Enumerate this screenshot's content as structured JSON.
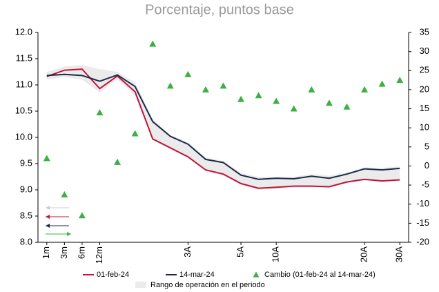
{
  "chart_data": {
    "type": "line",
    "title": "Porcentaje, puntos base",
    "categories": [
      "1m",
      "3m",
      "6m",
      "12m",
      null,
      null,
      null,
      null,
      "3A",
      null,
      null,
      "5A",
      null,
      "10A",
      null,
      null,
      null,
      null,
      "20A",
      null,
      "30A"
    ],
    "ylim": [
      8.0,
      12.0
    ],
    "yticks": [
      {
        "value": 8.0,
        "label": "8.0"
      },
      {
        "value": 8.5,
        "label": "8.5"
      },
      {
        "value": 9.0,
        "label": "9.0"
      },
      {
        "value": 9.5,
        "label": "9.5"
      },
      {
        "value": 10.0,
        "label": "10.0"
      },
      {
        "value": 10.5,
        "label": "10.5"
      },
      {
        "value": 11.0,
        "label": "11.0"
      },
      {
        "value": 11.5,
        "label": "11.5"
      },
      {
        "value": 12.0,
        "label": "12.0"
      }
    ],
    "y2lim": [
      -20,
      35
    ],
    "y2ticks": [
      -20,
      -15,
      -10,
      -5,
      0,
      5,
      10,
      15,
      20,
      25,
      30,
      35
    ],
    "range": {
      "name": "Rango de operación en el periodo",
      "color": "#ebebeb",
      "high": [
        11.25,
        11.35,
        11.38,
        11.3,
        11.25,
        11.05,
        10.35,
        10.05,
        9.9,
        9.62,
        9.55,
        9.32,
        9.25,
        9.25,
        9.25,
        9.3,
        9.27,
        9.33,
        9.43,
        9.42,
        9.45
      ],
      "low": [
        11.1,
        11.15,
        11.1,
        10.85,
        11.1,
        10.8,
        9.95,
        9.78,
        9.6,
        9.35,
        9.27,
        9.1,
        9.0,
        9.02,
        9.04,
        9.05,
        9.04,
        9.12,
        9.17,
        9.15,
        9.17
      ]
    },
    "series": [
      {
        "name": "01-feb-24",
        "type": "line",
        "color": "#c0143c",
        "values": [
          11.16,
          11.28,
          11.3,
          10.93,
          11.17,
          10.87,
          9.97,
          9.8,
          9.63,
          9.38,
          9.3,
          9.12,
          9.03,
          9.05,
          9.07,
          9.07,
          9.06,
          9.15,
          9.2,
          9.17,
          9.19
        ]
      },
      {
        "name": "14-mar-24",
        "type": "line",
        "color": "#1b2a4a",
        "values": [
          11.18,
          11.2,
          11.18,
          11.07,
          11.19,
          10.97,
          10.3,
          10.02,
          9.87,
          9.58,
          9.52,
          9.28,
          9.2,
          9.22,
          9.21,
          9.26,
          9.22,
          9.3,
          9.4,
          9.38,
          9.41
        ]
      },
      {
        "name": "Cambio (01-feb-24 al 14-mar-24)",
        "type": "scatter",
        "axis": "y2",
        "color": "#3cb043",
        "values": [
          2,
          -7.5,
          -13,
          14,
          1,
          8.5,
          32,
          21,
          24,
          20,
          21,
          17.5,
          18.5,
          17,
          15,
          20,
          16.5,
          15.5,
          20,
          21.5,
          22.5
        ]
      }
    ]
  }
}
